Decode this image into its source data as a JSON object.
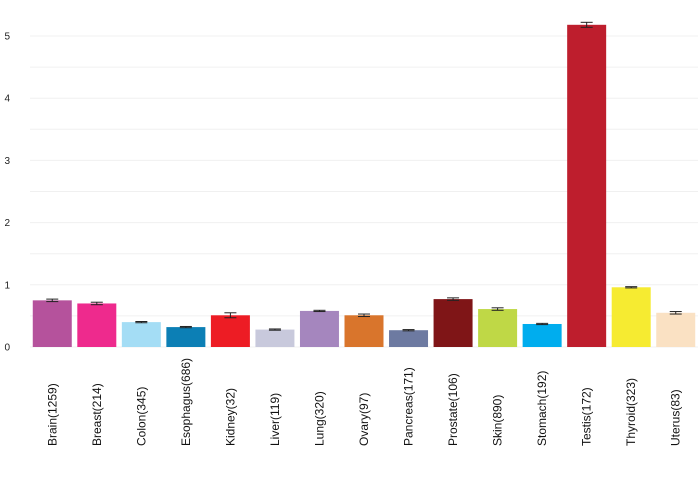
{
  "chart_data": {
    "type": "bar",
    "categories": [
      "Brain(1259)",
      "Breast(214)",
      "Colon(345)",
      "Esophagus(686)",
      "Kidney(32)",
      "Liver(119)",
      "Lung(320)",
      "Ovary(97)",
      "Pancreas(171)",
      "Prostate(106)",
      "Skin(890)",
      "Stomach(192)",
      "Testis(172)",
      "Thyroid(323)",
      "Uterus(83)"
    ],
    "values": [
      0.75,
      0.7,
      0.4,
      0.32,
      0.51,
      0.28,
      0.58,
      0.51,
      0.27,
      0.77,
      0.61,
      0.37,
      5.18,
      0.96,
      0.55
    ],
    "errors": [
      0.02,
      0.02,
      0.01,
      0.01,
      0.04,
      0.01,
      0.01,
      0.02,
      0.01,
      0.02,
      0.02,
      0.01,
      0.04,
      0.01,
      0.02
    ],
    "colors": [
      "#b5529c",
      "#ee2a8d",
      "#a4ddf5",
      "#0c7fb5",
      "#ed1c24",
      "#c8c9dc",
      "#a586be",
      "#d9752c",
      "#6d7aa1",
      "#7f1517",
      "#bfd846",
      "#00adee",
      "#be1e2d",
      "#f6eb31",
      "#fae1c3"
    ],
    "xlabel": "",
    "ylabel": "",
    "ylim": [
      0,
      5.3
    ],
    "yticks": [
      "0",
      "1",
      "2",
      "3",
      "4",
      "5"
    ],
    "grid": true
  }
}
